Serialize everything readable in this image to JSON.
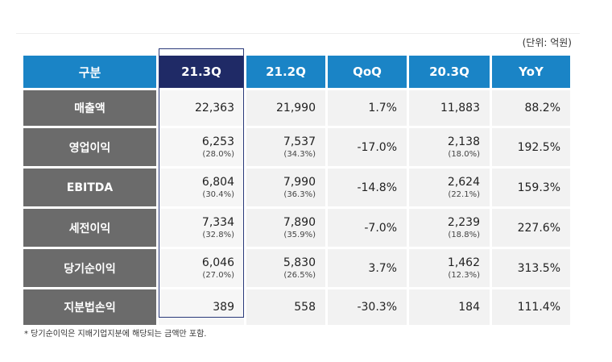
{
  "unit_note": "(단위: 억원)",
  "headers": [
    "구분",
    "21.3Q",
    "21.2Q",
    "QoQ",
    "20.3Q",
    "YoY"
  ],
  "rows": [
    {
      "label": "매출액",
      "q3_21": "22,363",
      "q3_21_pct": "",
      "q2_21": "21,990",
      "q2_21_pct": "",
      "qoq": "1.7%",
      "q3_20": "11,883",
      "q3_20_pct": "",
      "yoy": "88.2%"
    },
    {
      "label": "영업이익",
      "q3_21": "6,253",
      "q3_21_pct": "(28.0%)",
      "q2_21": "7,537",
      "q2_21_pct": "(34.3%)",
      "qoq": "-17.0%",
      "q3_20": "2,138",
      "q3_20_pct": "(18.0%)",
      "yoy": "192.5%"
    },
    {
      "label": "EBITDA",
      "q3_21": "6,804",
      "q3_21_pct": "(30.4%)",
      "q2_21": "7,990",
      "q2_21_pct": "(36.3%)",
      "qoq": "-14.8%",
      "q3_20": "2,624",
      "q3_20_pct": "(22.1%)",
      "yoy": "159.3%"
    },
    {
      "label": "세전이익",
      "q3_21": "7,334",
      "q3_21_pct": "(32.8%)",
      "q2_21": "7,890",
      "q2_21_pct": "(35.9%)",
      "qoq": "-7.0%",
      "q3_20": "2,239",
      "q3_20_pct": "(18.8%)",
      "yoy": "227.6%"
    },
    {
      "label": "당기순이익",
      "q3_21": "6,046",
      "q3_21_pct": "(27.0%)",
      "q2_21": "5,830",
      "q2_21_pct": "(26.5%)",
      "qoq": "3.7%",
      "q3_20": "1,462",
      "q3_20_pct": "(12.3%)",
      "yoy": "313.5%"
    },
    {
      "label": "지분법손익",
      "q3_21": "389",
      "q3_21_pct": "",
      "q2_21": "558",
      "q2_21_pct": "",
      "qoq": "-30.3%",
      "q3_20": "184",
      "q3_20_pct": "",
      "yoy": "111.4%"
    }
  ],
  "footnote": "* 당기순이익은 지배기업지분에 해당되는 금액만 포함.",
  "colors": {
    "header_blue": "#1a84c6",
    "header_highlight": "#1f2a66",
    "label_gray": "#6b6b6b",
    "cell_bg": "#f2f2f2"
  }
}
